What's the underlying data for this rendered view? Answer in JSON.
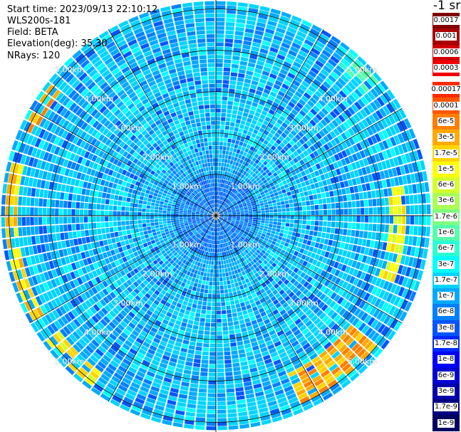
{
  "header": {
    "start_time": "Start time: 2023/09/13 22:10:12",
    "device": "WLS200s-181",
    "field": "Field: BETA",
    "elevation": "Elevation(deg): 35.30",
    "nrays": "NRays: 120"
  },
  "colorbar": {
    "unit": "-1 sr",
    "levels": [
      {
        "label": "0.0017",
        "color": "#800000"
      },
      {
        "label": "0.001",
        "color": "#a80000"
      },
      {
        "label": "0.0006",
        "color": "#d00000"
      },
      {
        "label": "0.0003",
        "color": "#f00000"
      },
      {
        "label": "0.00017",
        "color": "#ff2a00"
      },
      {
        "label": "0.0001",
        "color": "#ff5500"
      },
      {
        "label": "6e-5",
        "color": "#ff8000"
      },
      {
        "label": "3e-5",
        "color": "#ffaa00"
      },
      {
        "label": "1.7e-5",
        "color": "#ffd400"
      },
      {
        "label": "1e-5",
        "color": "#ffff00"
      },
      {
        "label": "6e-6",
        "color": "#d4ff2a"
      },
      {
        "label": "3e-6",
        "color": "#aaff55"
      },
      {
        "label": "1.7e-6",
        "color": "#80ff80"
      },
      {
        "label": "1e-6",
        "color": "#55ffaa"
      },
      {
        "label": "6e-7",
        "color": "#2affd4"
      },
      {
        "label": "3e-7",
        "color": "#00ffff"
      },
      {
        "label": "1.7e-7",
        "color": "#00d4ff"
      },
      {
        "label": "1e-7",
        "color": "#00aaff"
      },
      {
        "label": "6e-8",
        "color": "#0080ff"
      },
      {
        "label": "3e-8",
        "color": "#0055ff"
      },
      {
        "label": "1.7e-8",
        "color": "#002aff"
      },
      {
        "label": "1e-8",
        "color": "#0000ff"
      },
      {
        "label": "6e-9",
        "color": "#0000d0"
      },
      {
        "label": "3e-9",
        "color": "#0000a8"
      },
      {
        "label": "1.7e-9",
        "color": "#000080"
      },
      {
        "label": "1e-9",
        "color": "#000060"
      }
    ]
  },
  "chart_data": {
    "type": "heatmap",
    "plot_kind": "PPI polar scan",
    "field": "BETA",
    "n_rays": 120,
    "max_range_km": 5.2,
    "range_rings_km": [
      1,
      2,
      3,
      4,
      5
    ],
    "range_ring_labels": [
      "1.00km",
      "2.00km",
      "3.00km",
      "4.00km",
      "5.00km"
    ],
    "high_backscatter_features": [
      {
        "azimuth_deg": [
          40,
          50
        ],
        "range_km": [
          4.7,
          5.1
        ],
        "level": "6e-7"
      },
      {
        "azimuth_deg": [
          80,
          110
        ],
        "range_km": [
          4.2,
          4.6
        ],
        "level": "1e-5"
      },
      {
        "azimuth_deg": [
          130,
          155
        ],
        "range_km": [
          4.2,
          5.0
        ],
        "level": "3e-5"
      },
      {
        "azimuth_deg": [
          215,
          235
        ],
        "range_km": [
          4.7,
          5.1
        ],
        "level": "1e-5"
      },
      {
        "azimuth_deg": [
          240,
          285
        ],
        "range_km": [
          4.8,
          5.1
        ],
        "level": "1.7e-5"
      },
      {
        "azimuth_deg": [
          295,
          310
        ],
        "range_km": [
          4.8,
          5.1
        ],
        "level": "3e-5"
      }
    ]
  }
}
